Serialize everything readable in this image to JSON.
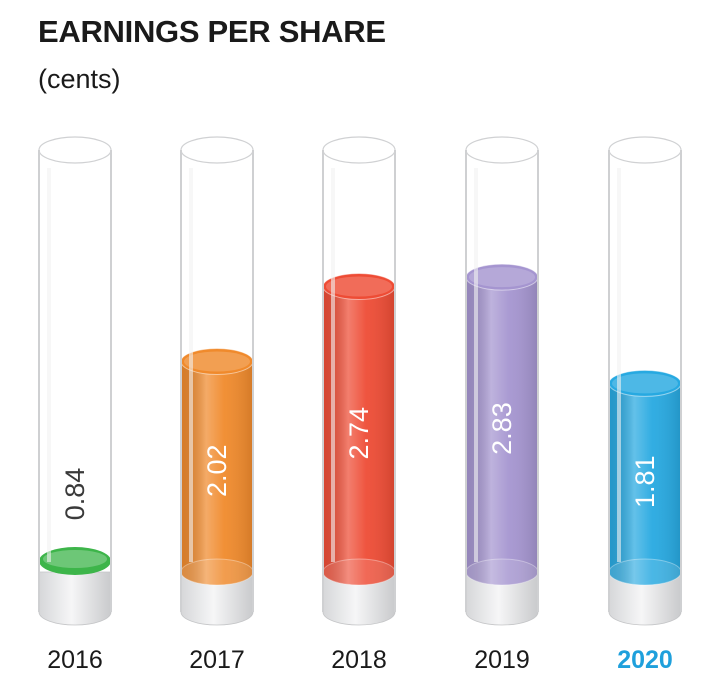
{
  "chart_data": {
    "type": "bar",
    "title": "EARNINGS PER SHARE",
    "subtitle": "(cents)",
    "categories": [
      "2016",
      "2017",
      "2018",
      "2019",
      "2020"
    ],
    "values": [
      0.84,
      2.02,
      2.74,
      2.83,
      1.81
    ],
    "value_labels": [
      "0.84",
      "2.02",
      "2.74",
      "2.83",
      "1.81"
    ],
    "colors": [
      "#3db54a",
      "#f08a2c",
      "#ee4c35",
      "#a595d0",
      "#27a9e1"
    ],
    "highlight_category": "2020",
    "highlight_color": "#1fa0dc",
    "label_color": "#1a1a1a",
    "ylim": [
      0,
      4.05
    ],
    "grid": false,
    "legend": "none"
  }
}
